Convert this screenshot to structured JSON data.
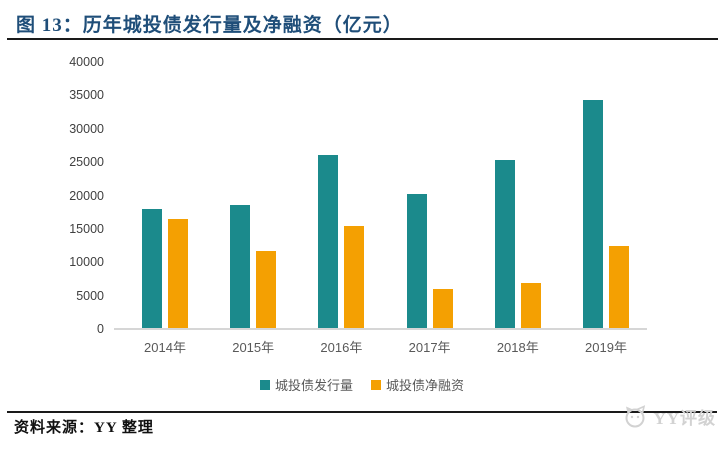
{
  "figure": {
    "title": "图 13：历年城投债发行量及净融资（亿元）",
    "source": "资料来源：YY 整理",
    "watermark": "YY评级"
  },
  "colors": {
    "title_text": "#1F4E79",
    "issuance_teal": "#1B8A8C",
    "net_orange": "#F4A002",
    "axis_line": "#D6D6D6",
    "tick_text": "#404040",
    "legend_text": "#595959",
    "divider": "#1A1A1A",
    "watermark_gray": "#D2D2D2"
  },
  "chart_data": {
    "type": "bar",
    "title": "历年城投债发行量及净融资（亿元）",
    "categories": [
      "2014年",
      "2015年",
      "2016年",
      "2017年",
      "2018年",
      "2019年"
    ],
    "series": [
      {
        "name": "城投债发行量",
        "color": "#1B8A8C",
        "values": [
          17800,
          18400,
          25900,
          20100,
          25100,
          34100
        ]
      },
      {
        "name": "城投债净融资",
        "color": "#F4A002",
        "values": [
          16400,
          11500,
          15300,
          5900,
          6800,
          12300
        ]
      }
    ],
    "ylim": [
      0,
      40000
    ],
    "yticks": [
      0,
      5000,
      10000,
      15000,
      20000,
      25000,
      30000,
      35000,
      40000
    ],
    "grid": false,
    "legend_position": "bottom",
    "xlabel": "",
    "ylabel": ""
  }
}
